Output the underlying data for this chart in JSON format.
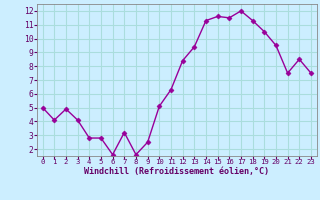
{
  "x": [
    0,
    1,
    2,
    3,
    4,
    5,
    6,
    7,
    8,
    9,
    10,
    11,
    12,
    13,
    14,
    15,
    16,
    17,
    18,
    19,
    20,
    21,
    22,
    23
  ],
  "y": [
    5.0,
    4.1,
    4.9,
    4.1,
    2.8,
    2.8,
    1.6,
    3.2,
    1.6,
    2.5,
    5.1,
    6.3,
    8.4,
    9.4,
    11.3,
    11.6,
    11.5,
    12.0,
    11.3,
    10.5,
    9.5,
    7.5,
    8.5,
    7.5
  ],
  "line_color": "#990099",
  "marker": "D",
  "marker_size": 2.5,
  "bg_color": "#cceeff",
  "grid_color": "#aadddd",
  "xlabel": "Windchill (Refroidissement éolien,°C)",
  "xlabel_color": "#660066",
  "tick_color": "#660066",
  "xlim": [
    -0.5,
    23.5
  ],
  "ylim": [
    1.5,
    12.5
  ],
  "yticks": [
    2,
    3,
    4,
    5,
    6,
    7,
    8,
    9,
    10,
    11,
    12
  ],
  "xticks": [
    0,
    1,
    2,
    3,
    4,
    5,
    6,
    7,
    8,
    9,
    10,
    11,
    12,
    13,
    14,
    15,
    16,
    17,
    18,
    19,
    20,
    21,
    22,
    23
  ]
}
